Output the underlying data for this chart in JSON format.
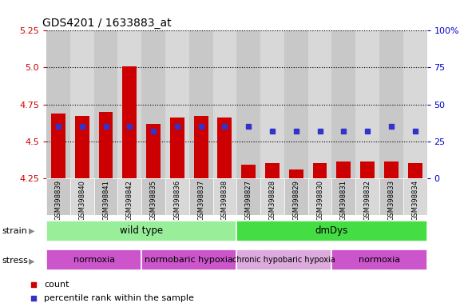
{
  "title": "GDS4201 / 1633883_at",
  "samples": [
    "GSM398839",
    "GSM398840",
    "GSM398841",
    "GSM398842",
    "GSM398835",
    "GSM398836",
    "GSM398837",
    "GSM398838",
    "GSM398827",
    "GSM398828",
    "GSM398829",
    "GSM398830",
    "GSM398831",
    "GSM398832",
    "GSM398833",
    "GSM398834"
  ],
  "count_values": [
    4.69,
    4.67,
    4.7,
    5.01,
    4.62,
    4.66,
    4.67,
    4.66,
    4.34,
    4.35,
    4.31,
    4.35,
    4.36,
    4.36,
    4.36,
    4.35
  ],
  "percentile_values": [
    35,
    35,
    35,
    35,
    32,
    35,
    35,
    35,
    35,
    32,
    32,
    32,
    32,
    32,
    35,
    32
  ],
  "ymin": 4.25,
  "ymax": 5.25,
  "yticks": [
    4.25,
    4.5,
    4.75,
    5.0,
    5.25
  ],
  "y2min": 0,
  "y2max": 100,
  "y2ticks": [
    0,
    25,
    50,
    75,
    100
  ],
  "bar_color": "#cc0000",
  "dot_color": "#3333cc",
  "strain_groups": [
    {
      "label": "wild type",
      "start": 0,
      "end": 8,
      "color": "#99ee99"
    },
    {
      "label": "dmDys",
      "start": 8,
      "end": 16,
      "color": "#44dd44"
    }
  ],
  "stress_groups": [
    {
      "label": "normoxia",
      "start": 0,
      "end": 4,
      "color": "#dd77dd"
    },
    {
      "label": "normobaric hypoxia",
      "start": 4,
      "end": 8,
      "color": "#dd77dd"
    },
    {
      "label": "chronic hypobaric hypoxia",
      "start": 8,
      "end": 12,
      "color": "#ee99ee"
    },
    {
      "label": "normoxia",
      "start": 12,
      "end": 16,
      "color": "#dd77dd"
    }
  ],
  "legend_count_label": "count",
  "legend_percentile_label": "percentile rank within the sample",
  "strain_label": "strain",
  "stress_label": "stress"
}
